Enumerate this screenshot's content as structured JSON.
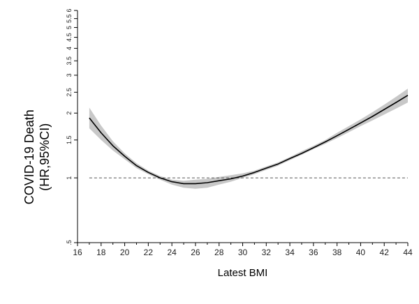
{
  "chart_data": {
    "type": "line",
    "xlabel": "Latest BMI",
    "ylabel": [
      "COVID-19 Death",
      "(HR,95%CI)"
    ],
    "x_scale": "linear",
    "y_scale": "log",
    "xlim": [
      16,
      44
    ],
    "ylim": [
      0.5,
      6
    ],
    "x_ticks": [
      16,
      18,
      20,
      22,
      24,
      26,
      28,
      30,
      32,
      34,
      36,
      38,
      40,
      42,
      44
    ],
    "x_minor_ticks": [
      17,
      19,
      21,
      23,
      25,
      27,
      29,
      31,
      33,
      35,
      37,
      39,
      41,
      43
    ],
    "y_ticks": [
      {
        "value": 0.5,
        "label": ".5"
      },
      {
        "value": 1,
        "label": "1"
      },
      {
        "value": 1.5,
        "label": "1.5"
      },
      {
        "value": 2,
        "label": "2"
      },
      {
        "value": 2.5,
        "label": "2.5"
      },
      {
        "value": 3,
        "label": "3"
      },
      {
        "value": 3.5,
        "label": "3.5"
      },
      {
        "value": 4,
        "label": "4"
      },
      {
        "value": 4.5,
        "label": "4.5"
      },
      {
        "value": 5,
        "label": "5"
      },
      {
        "value": 5.5,
        "label": "5.5"
      },
      {
        "value": 6,
        "label": "6"
      }
    ],
    "reference_line": {
      "y": 1,
      "style": "dashed"
    },
    "grid": false,
    "series": [
      {
        "color": "#000000",
        "band_color": "#c8c8c8",
        "x": [
          17,
          18,
          19,
          20,
          21,
          22,
          23,
          24,
          25,
          26,
          27,
          28,
          29,
          30,
          31,
          32,
          33,
          34,
          35,
          36,
          37,
          38,
          39,
          40,
          41,
          42,
          43,
          44
        ],
        "y": [
          1.9,
          1.62,
          1.41,
          1.26,
          1.14,
          1.06,
          1.0,
          0.96,
          0.94,
          0.94,
          0.95,
          0.97,
          0.99,
          1.02,
          1.06,
          1.11,
          1.16,
          1.23,
          1.3,
          1.38,
          1.47,
          1.57,
          1.68,
          1.8,
          1.93,
          2.08,
          2.24,
          2.42
        ],
        "lower": [
          1.7,
          1.5,
          1.34,
          1.22,
          1.11,
          1.04,
          0.98,
          0.93,
          0.9,
          0.89,
          0.9,
          0.93,
          0.96,
          1.0,
          1.04,
          1.09,
          1.14,
          1.21,
          1.28,
          1.36,
          1.44,
          1.53,
          1.63,
          1.74,
          1.85,
          1.97,
          2.1,
          2.24
        ],
        "upper": [
          2.12,
          1.75,
          1.48,
          1.3,
          1.17,
          1.08,
          1.02,
          0.98,
          0.97,
          0.98,
          0.99,
          1.01,
          1.03,
          1.05,
          1.08,
          1.13,
          1.18,
          1.25,
          1.33,
          1.41,
          1.5,
          1.62,
          1.74,
          1.87,
          2.02,
          2.19,
          2.38,
          2.6
        ]
      }
    ]
  }
}
